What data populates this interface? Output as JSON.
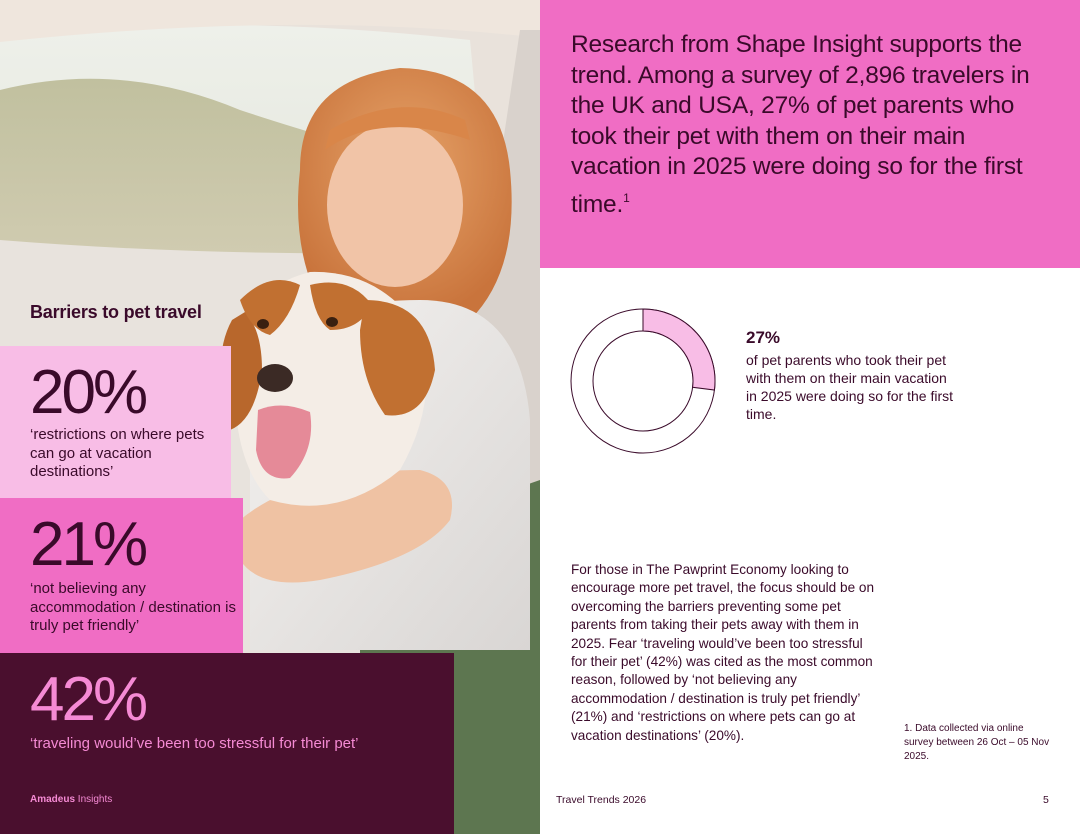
{
  "left_page": {
    "photo": {
      "subject": "girl hugging beagle dog in a car"
    },
    "barriers_title": "Barriers to pet travel",
    "stats": [
      {
        "percent": "20%",
        "description": "‘restrictions on where pets can go at vacation destinations’"
      },
      {
        "percent": "21%",
        "description": "‘not believing any accommodation / destination is truly pet friendly’"
      },
      {
        "percent": "42%",
        "description": "‘traveling would’ve been too stressful for their pet’"
      }
    ],
    "footer": {
      "brand": "Amadeus",
      "section": "Insights"
    }
  },
  "right_page": {
    "intro": "Research from Shape Insight supports the trend. Among a survey of 2,896 travelers in the UK and USA, 27% of pet parents who took their pet with them on their main vacation in 2025 were doing so for the first time.",
    "intro_footnote_marker": "1",
    "donut": {
      "value": 27,
      "label_big": "27%",
      "label_small": "of pet parents who took their pet with them on their main vacation in 2025 were doing so for the first time.",
      "color_fill": "#f8bde6",
      "color_stroke": "#3a0a2a"
    },
    "body_text": "For those in The Pawprint Economy looking to encourage more pet travel, the focus should be on overcoming the barriers preventing some pet parents from taking their pets away with them in 2025. Fear ‘traveling would’ve been too stressful for their pet’ (42%) was cited as the most common reason, followed by ‘not believing any accommodation / destination is truly pet friendly’ (21%) and ‘restrictions on where pets can go at vacation destinations’ (20%).",
    "footnote": "1. Data collected via online survey between 26 Oct – 05 Nov 2025.",
    "footer_title": "Travel Trends 2026",
    "page_number": "5"
  },
  "colors": {
    "dark_plum": "#4a0f2e",
    "text_plum": "#3a0a2a",
    "hot_pink": "#f06dc4",
    "light_pink": "#f8bde6",
    "accent_pink_text": "#f58ad4"
  }
}
